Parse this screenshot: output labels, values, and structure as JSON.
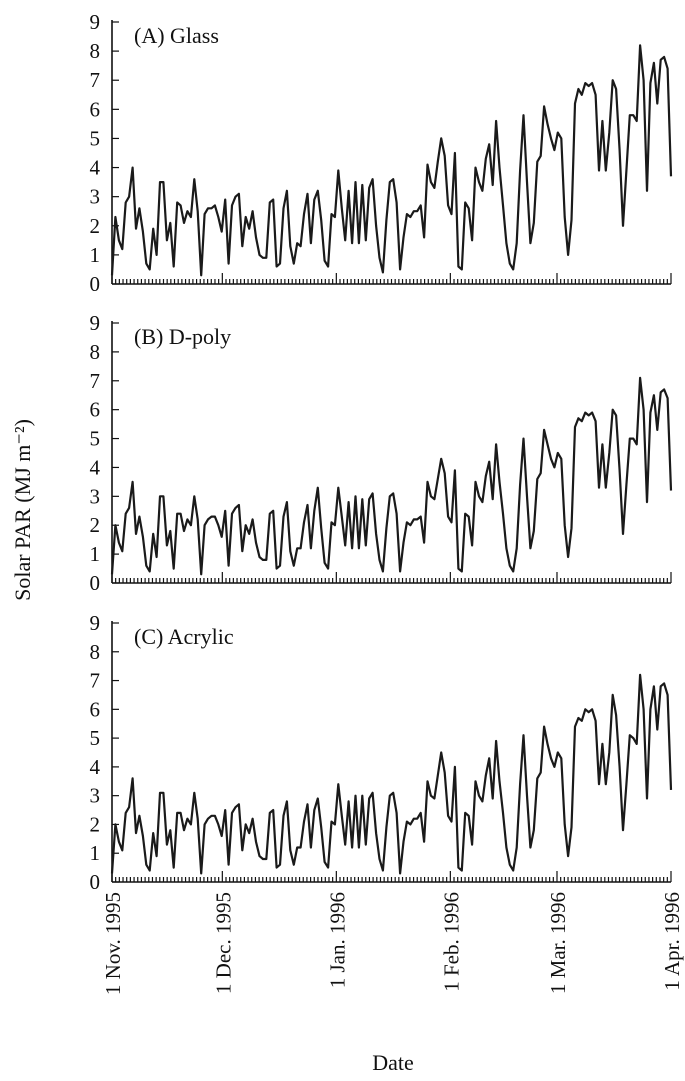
{
  "chart_data": [
    {
      "type": "line",
      "panel_label": "(A) Glass",
      "ylim": [
        0,
        9
      ],
      "yticks": [
        "0",
        "1",
        "2",
        "3",
        "4",
        "5",
        "6",
        "7",
        "8",
        "9"
      ],
      "x_start": "1995-11-01",
      "series": [
        {
          "values": [
            0.3,
            2.3,
            1.5,
            1.2,
            2.8,
            3.0,
            4.0,
            1.9,
            2.6,
            1.8,
            0.7,
            0.5,
            1.9,
            1.0,
            3.5,
            3.5,
            1.5,
            2.1,
            0.6,
            2.8,
            2.7,
            2.1,
            2.5,
            2.3,
            3.6,
            2.5,
            0.3,
            2.4,
            2.6,
            2.6,
            2.7,
            2.3,
            1.8,
            2.9,
            0.7,
            2.7,
            3.0,
            3.1,
            1.3,
            2.3,
            1.9,
            2.5,
            1.6,
            1.0,
            0.9,
            0.9,
            2.8,
            2.9,
            0.6,
            0.7,
            2.6,
            3.2,
            1.3,
            0.7,
            1.4,
            1.3,
            2.4,
            3.1,
            1.4,
            2.9,
            3.2,
            2.2,
            0.8,
            0.6,
            2.4,
            2.3,
            3.9,
            2.6,
            1.5,
            3.2,
            1.4,
            3.5,
            1.4,
            3.4,
            1.5,
            3.3,
            3.6,
            2.0,
            0.9,
            0.4,
            2.2,
            3.5,
            3.6,
            2.8,
            0.5,
            1.6,
            2.4,
            2.3,
            2.5,
            2.5,
            2.7,
            1.6,
            4.1,
            3.5,
            3.3,
            4.2,
            5.0,
            4.4,
            2.7,
            2.4,
            4.5,
            0.6,
            0.5,
            2.8,
            2.6,
            1.5,
            4.0,
            3.5,
            3.2,
            4.3,
            4.8,
            3.4,
            5.6,
            4.0,
            2.7,
            1.4,
            0.7,
            0.5,
            1.4,
            3.9,
            5.8,
            3.5,
            1.4,
            2.1,
            4.2,
            4.4,
            6.1,
            5.5,
            5.0,
            4.6,
            5.2,
            5.0,
            2.3,
            1.0,
            2.2,
            6.2,
            6.7,
            6.5,
            6.9,
            6.8,
            6.9,
            6.5,
            3.9,
            5.6,
            3.9,
            5.2,
            7.0,
            6.7,
            4.6,
            2.0,
            3.9,
            5.8,
            5.8,
            5.6,
            8.2,
            7.0,
            3.2,
            6.9,
            7.6,
            6.2,
            7.7,
            7.8,
            7.4,
            3.7
          ]
        }
      ]
    },
    {
      "type": "line",
      "panel_label": "(B) D-poly",
      "ylim": [
        0,
        9
      ],
      "yticks": [
        "0",
        "1",
        "2",
        "3",
        "4",
        "5",
        "6",
        "7",
        "8",
        "9"
      ],
      "x_start": "1995-11-01",
      "series": [
        {
          "values": [
            0.3,
            2.0,
            1.4,
            1.1,
            2.4,
            2.6,
            3.5,
            1.7,
            2.3,
            1.6,
            0.6,
            0.4,
            1.7,
            0.9,
            3.0,
            3.0,
            1.3,
            1.8,
            0.5,
            2.4,
            2.4,
            1.8,
            2.2,
            2.0,
            3.0,
            2.2,
            0.3,
            2.0,
            2.2,
            2.3,
            2.3,
            2.0,
            1.6,
            2.5,
            0.6,
            2.4,
            2.6,
            2.7,
            1.1,
            2.0,
            1.7,
            2.2,
            1.4,
            0.9,
            0.8,
            0.8,
            2.4,
            2.5,
            0.5,
            0.6,
            2.3,
            2.8,
            1.1,
            0.6,
            1.2,
            1.2,
            2.1,
            2.7,
            1.2,
            2.5,
            3.3,
            1.9,
            0.7,
            0.5,
            2.1,
            2.0,
            3.3,
            2.3,
            1.3,
            2.8,
            1.2,
            3.0,
            1.2,
            2.9,
            1.3,
            2.9,
            3.1,
            1.7,
            0.8,
            0.4,
            1.9,
            3.0,
            3.1,
            2.4,
            0.4,
            1.4,
            2.1,
            2.0,
            2.2,
            2.2,
            2.3,
            1.4,
            3.5,
            3.0,
            2.9,
            3.6,
            4.3,
            3.8,
            2.3,
            2.1,
            3.9,
            0.5,
            0.4,
            2.4,
            2.3,
            1.3,
            3.5,
            3.0,
            2.8,
            3.7,
            4.2,
            2.9,
            4.8,
            3.5,
            2.4,
            1.2,
            0.6,
            0.4,
            1.2,
            3.4,
            5.0,
            3.0,
            1.2,
            1.8,
            3.6,
            3.8,
            5.3,
            4.8,
            4.3,
            4.0,
            4.5,
            4.3,
            2.0,
            0.9,
            1.9,
            5.4,
            5.7,
            5.6,
            5.9,
            5.8,
            5.9,
            5.6,
            3.3,
            4.8,
            3.3,
            4.5,
            6.0,
            5.8,
            3.9,
            1.7,
            3.4,
            5.0,
            5.0,
            4.8,
            7.1,
            6.0,
            2.8,
            5.9,
            6.5,
            5.3,
            6.6,
            6.7,
            6.4,
            3.2
          ]
        }
      ]
    },
    {
      "type": "line",
      "panel_label": "(C) Acrylic",
      "ylim": [
        0,
        9
      ],
      "yticks": [
        "0",
        "1",
        "2",
        "3",
        "4",
        "5",
        "6",
        "7",
        "8",
        "9"
      ],
      "x_start": "1995-11-01",
      "series": [
        {
          "values": [
            0.3,
            2.0,
            1.4,
            1.1,
            2.4,
            2.6,
            3.6,
            1.7,
            2.3,
            1.6,
            0.6,
            0.4,
            1.7,
            0.9,
            3.1,
            3.1,
            1.3,
            1.8,
            0.5,
            2.4,
            2.4,
            1.8,
            2.2,
            2.0,
            3.1,
            2.2,
            0.3,
            2.0,
            2.2,
            2.3,
            2.3,
            2.0,
            1.6,
            2.5,
            0.6,
            2.4,
            2.6,
            2.7,
            1.1,
            2.0,
            1.7,
            2.2,
            1.4,
            0.9,
            0.8,
            0.8,
            2.4,
            2.5,
            0.5,
            0.6,
            2.3,
            2.8,
            1.1,
            0.6,
            1.2,
            1.2,
            2.1,
            2.7,
            1.2,
            2.5,
            2.9,
            1.9,
            0.7,
            0.5,
            2.1,
            2.0,
            3.4,
            2.3,
            1.3,
            2.8,
            1.2,
            3.0,
            1.2,
            3.0,
            1.3,
            2.9,
            3.1,
            1.7,
            0.8,
            0.4,
            1.9,
            3.0,
            3.1,
            2.4,
            0.3,
            1.4,
            2.1,
            2.0,
            2.2,
            2.2,
            2.4,
            1.4,
            3.5,
            3.0,
            2.9,
            3.7,
            4.5,
            3.8,
            2.3,
            2.1,
            4.0,
            0.5,
            0.4,
            2.4,
            2.3,
            1.3,
            3.5,
            3.0,
            2.8,
            3.7,
            4.3,
            2.9,
            4.9,
            3.5,
            2.4,
            1.2,
            0.6,
            0.4,
            1.2,
            3.4,
            5.1,
            3.0,
            1.2,
            1.8,
            3.6,
            3.8,
            5.4,
            4.8,
            4.3,
            4.0,
            4.5,
            4.3,
            2.0,
            0.9,
            1.9,
            5.4,
            5.7,
            5.6,
            6.0,
            5.9,
            6.0,
            5.6,
            3.4,
            4.8,
            3.4,
            4.5,
            6.5,
            5.8,
            4.0,
            1.8,
            3.4,
            5.1,
            5.0,
            4.8,
            7.2,
            6.0,
            2.9,
            6.0,
            6.8,
            5.3,
            6.8,
            6.9,
            6.5,
            3.2
          ]
        }
      ]
    }
  ],
  "x_tick_labels": [
    "1 Nov. 1995",
    "1 Dec. 1995",
    "1 Jan. 1996",
    "1 Feb. 1996",
    "1 Mar. 1996",
    "1 Apr. 1996"
  ],
  "x_tick_dates": [
    "1995-11-01",
    "1995-12-01",
    "1996-01-01",
    "1996-02-01",
    "1996-03-01",
    "1996-04-01"
  ],
  "ylabel": "Solar PAR (MJ m⁻²)",
  "xlabel": "Date"
}
